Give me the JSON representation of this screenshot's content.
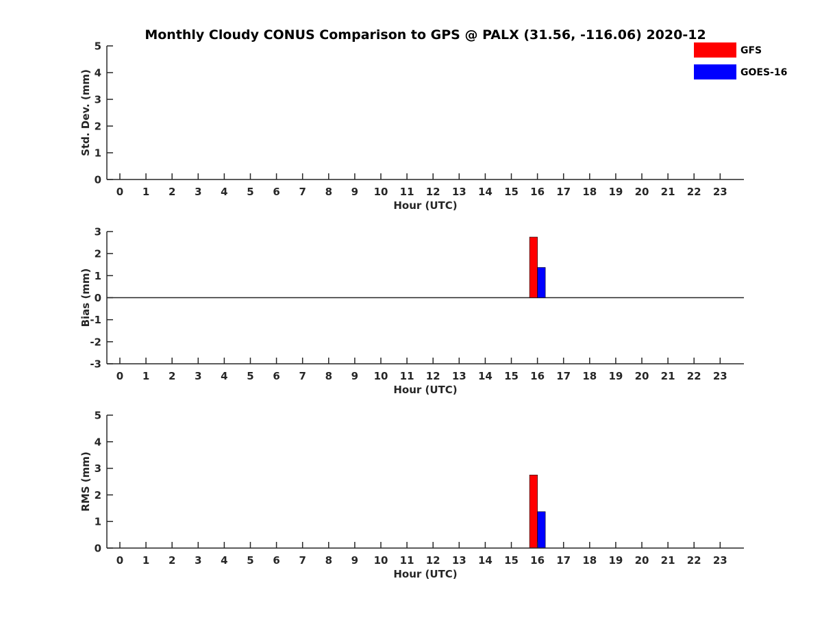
{
  "title": "Monthly Cloudy CONUS Comparison to GPS @ PALX (31.56, -116.06) 2020-12",
  "legend": {
    "placement": "top-right",
    "items": [
      {
        "name": "GFS",
        "color": "#ff0000"
      },
      {
        "name": "GOES-16",
        "color": "#0000ff"
      }
    ]
  },
  "chart_data": [
    {
      "type": "bar",
      "xlabel": "Hour (UTC)",
      "ylabel": "Std. Dev. (mm)",
      "categories": [
        "0",
        "1",
        "2",
        "3",
        "4",
        "5",
        "6",
        "7",
        "8",
        "9",
        "10",
        "11",
        "12",
        "13",
        "14",
        "15",
        "16",
        "17",
        "18",
        "19",
        "20",
        "21",
        "22",
        "23"
      ],
      "ylim": [
        0,
        5
      ],
      "yticks": [
        "0",
        "1",
        "2",
        "3",
        "4",
        "5"
      ],
      "zero_line": false,
      "series": [
        {
          "name": "GFS",
          "color": "#ff0000",
          "points": []
        },
        {
          "name": "GOES-16",
          "color": "#0000ff",
          "points": []
        }
      ]
    },
    {
      "type": "bar",
      "xlabel": "Hour (UTC)",
      "ylabel": "Bias (mm)",
      "categories": [
        "0",
        "1",
        "2",
        "3",
        "4",
        "5",
        "6",
        "7",
        "8",
        "9",
        "10",
        "11",
        "12",
        "13",
        "14",
        "15",
        "16",
        "17",
        "18",
        "19",
        "20",
        "21",
        "22",
        "23"
      ],
      "ylim": [
        -3,
        3
      ],
      "yticks": [
        "-3",
        "-2",
        "-1",
        "0",
        "1",
        "2",
        "3"
      ],
      "zero_line": true,
      "series": [
        {
          "name": "GFS",
          "color": "#ff0000",
          "points": [
            {
              "hour": 16,
              "value": 2.75
            }
          ]
        },
        {
          "name": "GOES-16",
          "color": "#0000ff",
          "points": [
            {
              "hour": 16,
              "value": 1.37
            }
          ]
        }
      ]
    },
    {
      "type": "bar",
      "xlabel": "Hour (UTC)",
      "ylabel": "RMS (mm)",
      "categories": [
        "0",
        "1",
        "2",
        "3",
        "4",
        "5",
        "6",
        "7",
        "8",
        "9",
        "10",
        "11",
        "12",
        "13",
        "14",
        "15",
        "16",
        "17",
        "18",
        "19",
        "20",
        "21",
        "22",
        "23"
      ],
      "ylim": [
        0,
        5
      ],
      "yticks": [
        "0",
        "1",
        "2",
        "3",
        "4",
        "5"
      ],
      "zero_line": false,
      "series": [
        {
          "name": "GFS",
          "color": "#ff0000",
          "points": [
            {
              "hour": 16,
              "value": 2.75
            }
          ]
        },
        {
          "name": "GOES-16",
          "color": "#0000ff",
          "points": [
            {
              "hour": 16,
              "value": 1.37
            }
          ]
        }
      ]
    }
  ]
}
